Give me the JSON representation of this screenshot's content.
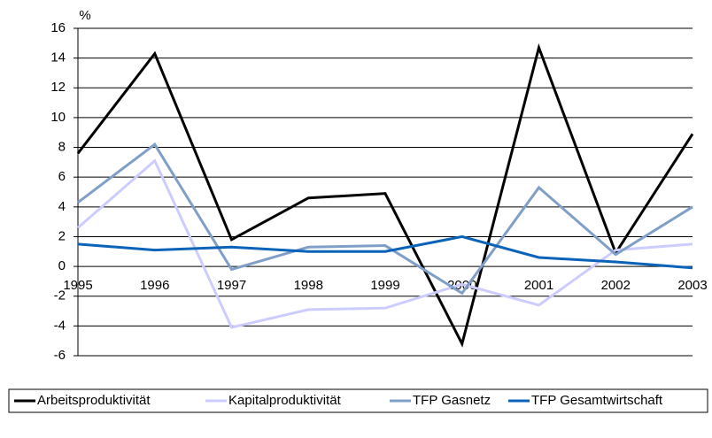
{
  "chart_data": {
    "type": "line",
    "y_label": "%",
    "categories": [
      "1995",
      "1996",
      "1997",
      "1998",
      "1999",
      "2000",
      "2001",
      "2002",
      "2003"
    ],
    "series": [
      {
        "name": "Arbeitsproduktivität",
        "color": "#000000",
        "values": [
          7.6,
          14.3,
          1.8,
          4.6,
          4.9,
          -5.2,
          14.7,
          0.9,
          8.9
        ]
      },
      {
        "name": "Kapitalproduktivität",
        "color": "#ccccff",
        "values": [
          2.6,
          7.1,
          -4.1,
          -2.9,
          -2.8,
          -1.2,
          -2.6,
          1.1,
          1.5
        ]
      },
      {
        "name": "TFP Gasnetz",
        "color": "#7f9fc8",
        "values": [
          4.3,
          8.2,
          -0.2,
          1.3,
          1.4,
          -1.8,
          5.3,
          0.8,
          4.0
        ]
      },
      {
        "name": "TFP Gesamtwirtschaft",
        "color": "#0a63b8",
        "values": [
          1.5,
          1.1,
          1.3,
          1.0,
          1.0,
          2.0,
          0.6,
          0.3,
          -0.1
        ]
      }
    ],
    "ylim": [
      -6,
      16
    ],
    "yticks": [
      -6,
      -4,
      -2,
      0,
      2,
      4,
      6,
      8,
      10,
      12,
      14,
      16
    ],
    "grid": true,
    "legend": "bottom"
  }
}
